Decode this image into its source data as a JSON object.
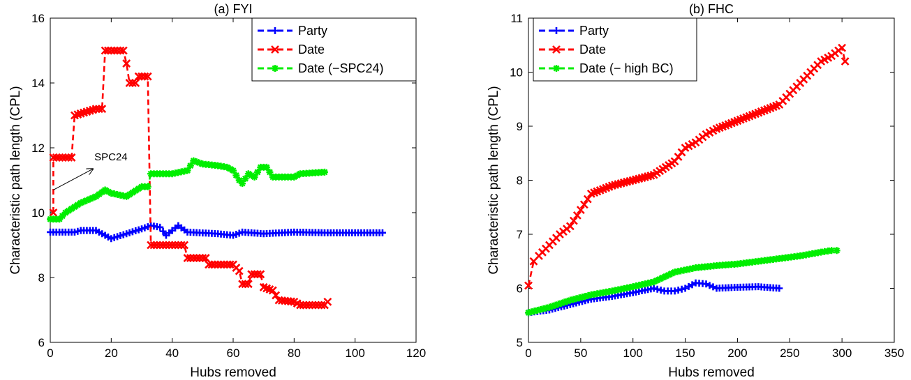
{
  "chart_data": [
    {
      "type": "line",
      "title": "(a) FYI",
      "xlabel": "Hubs removed",
      "ylabel": "Characteristic path length (CPL)",
      "xlim": [
        0,
        120
      ],
      "ylim": [
        6,
        16
      ],
      "xticks": [
        0,
        20,
        40,
        60,
        80,
        100,
        120
      ],
      "yticks": [
        6,
        8,
        10,
        12,
        14,
        16
      ],
      "legend_position": "top-right",
      "annotation": {
        "text": "SPC24",
        "arrow_from": [
          1,
          10.7
        ],
        "arrow_to": [
          14,
          11.35
        ]
      },
      "series": [
        {
          "name": "Party",
          "color": "#0000ff",
          "marker": "plus",
          "points": [
            [
              0,
              9.4
            ],
            [
              8,
              9.4
            ],
            [
              10,
              9.45
            ],
            [
              15,
              9.45
            ],
            [
              18,
              9.3
            ],
            [
              20,
              9.2
            ],
            [
              25,
              9.35
            ],
            [
              30,
              9.5
            ],
            [
              33,
              9.6
            ],
            [
              36,
              9.55
            ],
            [
              38,
              9.3
            ],
            [
              40,
              9.45
            ],
            [
              42,
              9.6
            ],
            [
              45,
              9.4
            ],
            [
              55,
              9.35
            ],
            [
              60,
              9.3
            ],
            [
              63,
              9.4
            ],
            [
              70,
              9.35
            ],
            [
              80,
              9.4
            ],
            [
              90,
              9.38
            ],
            [
              100,
              9.38
            ],
            [
              109,
              9.38
            ]
          ]
        },
        {
          "name": "Date",
          "color": "#ff0000",
          "marker": "x",
          "points": [
            [
              1,
              10
            ],
            [
              1,
              11.7
            ],
            [
              7,
              11.7
            ],
            [
              8,
              13
            ],
            [
              15,
              13.2
            ],
            [
              17,
              13.2
            ],
            [
              18,
              15
            ],
            [
              24,
              15
            ],
            [
              25,
              14.6
            ],
            [
              26,
              14
            ],
            [
              28,
              14
            ],
            [
              29,
              14.2
            ],
            [
              32,
              14.2
            ],
            [
              33,
              9
            ],
            [
              44,
              9
            ],
            [
              45,
              8.6
            ],
            [
              51,
              8.6
            ],
            [
              52,
              8.4
            ],
            [
              60,
              8.4
            ],
            [
              62,
              8.2
            ],
            [
              63,
              7.8
            ],
            [
              65,
              7.8
            ],
            [
              66,
              8.1
            ],
            [
              69,
              8.1
            ],
            [
              70,
              7.7
            ],
            [
              73,
              7.6
            ],
            [
              75,
              7.3
            ],
            [
              80,
              7.25
            ],
            [
              82,
              7.15
            ],
            [
              90,
              7.15
            ],
            [
              91,
              7.25
            ]
          ]
        },
        {
          "name": "Date (−SPC24)",
          "color": "#00ee00",
          "marker": "asterisk",
          "points": [
            [
              0,
              9.8
            ],
            [
              3,
              9.8
            ],
            [
              5,
              10
            ],
            [
              10,
              10.3
            ],
            [
              15,
              10.5
            ],
            [
              18,
              10.7
            ],
            [
              20,
              10.6
            ],
            [
              25,
              10.5
            ],
            [
              30,
              10.8
            ],
            [
              32,
              10.8
            ],
            [
              33,
              11.2
            ],
            [
              40,
              11.2
            ],
            [
              45,
              11.3
            ],
            [
              47,
              11.6
            ],
            [
              50,
              11.5
            ],
            [
              55,
              11.45
            ],
            [
              58,
              11.4
            ],
            [
              60,
              11.3
            ],
            [
              62,
              11
            ],
            [
              63,
              10.9
            ],
            [
              65,
              11.2
            ],
            [
              67,
              11.1
            ],
            [
              69,
              11.4
            ],
            [
              71,
              11.4
            ],
            [
              73,
              11.1
            ],
            [
              80,
              11.1
            ],
            [
              82,
              11.2
            ],
            [
              90,
              11.25
            ]
          ]
        }
      ]
    },
    {
      "type": "line",
      "title": "(b) FHC",
      "xlabel": "Hubs removed",
      "ylabel": "Characteristic path length (CPL)",
      "xlim": [
        0,
        350
      ],
      "ylim": [
        5,
        11
      ],
      "xticks": [
        0,
        50,
        100,
        150,
        200,
        250,
        300,
        350
      ],
      "yticks": [
        5,
        6,
        7,
        8,
        9,
        10,
        11
      ],
      "legend_position": "top-left",
      "series": [
        {
          "name": "Party",
          "color": "#0000ff",
          "marker": "plus",
          "points": [
            [
              0,
              5.55
            ],
            [
              20,
              5.6
            ],
            [
              40,
              5.7
            ],
            [
              60,
              5.8
            ],
            [
              80,
              5.85
            ],
            [
              100,
              5.92
            ],
            [
              120,
              6
            ],
            [
              130,
              5.95
            ],
            [
              140,
              5.95
            ],
            [
              150,
              6
            ],
            [
              160,
              6.1
            ],
            [
              170,
              6.08
            ],
            [
              180,
              6
            ],
            [
              200,
              6.02
            ],
            [
              220,
              6.03
            ],
            [
              240,
              6
            ]
          ]
        },
        {
          "name": "Date",
          "color": "#ff0000",
          "marker": "x",
          "points": [
            [
              0,
              6.05
            ],
            [
              5,
              6.5
            ],
            [
              10,
              6.6
            ],
            [
              20,
              6.8
            ],
            [
              30,
              7
            ],
            [
              40,
              7.15
            ],
            [
              50,
              7.45
            ],
            [
              60,
              7.75
            ],
            [
              80,
              7.9
            ],
            [
              100,
              8
            ],
            [
              120,
              8.1
            ],
            [
              140,
              8.35
            ],
            [
              150,
              8.6
            ],
            [
              160,
              8.7
            ],
            [
              170,
              8.85
            ],
            [
              180,
              8.95
            ],
            [
              200,
              9.1
            ],
            [
              220,
              9.25
            ],
            [
              240,
              9.4
            ],
            [
              250,
              9.6
            ],
            [
              260,
              9.8
            ],
            [
              270,
              10
            ],
            [
              280,
              10.2
            ],
            [
              290,
              10.3
            ],
            [
              300,
              10.45
            ],
            [
              303,
              10.2
            ]
          ]
        },
        {
          "name": "Date (− high BC)",
          "color": "#00ee00",
          "marker": "asterisk",
          "points": [
            [
              0,
              5.55
            ],
            [
              20,
              5.65
            ],
            [
              40,
              5.78
            ],
            [
              60,
              5.88
            ],
            [
              80,
              5.95
            ],
            [
              100,
              6.03
            ],
            [
              120,
              6.12
            ],
            [
              140,
              6.3
            ],
            [
              160,
              6.38
            ],
            [
              180,
              6.42
            ],
            [
              200,
              6.45
            ],
            [
              220,
              6.5
            ],
            [
              240,
              6.55
            ],
            [
              260,
              6.6
            ],
            [
              280,
              6.67
            ],
            [
              290,
              6.7
            ],
            [
              295,
              6.7
            ]
          ]
        }
      ]
    }
  ]
}
